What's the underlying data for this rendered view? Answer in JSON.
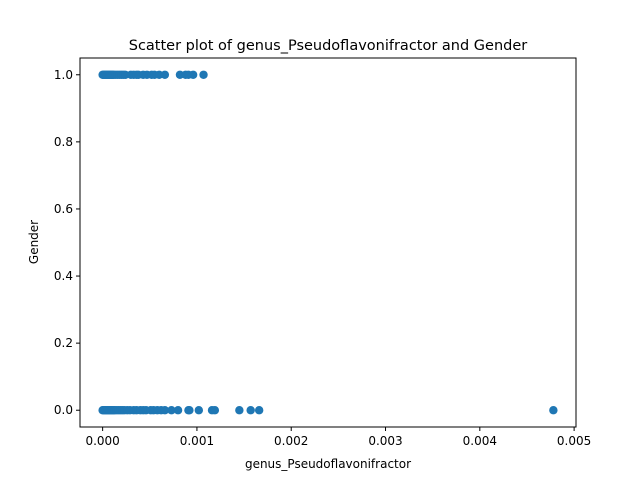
{
  "chart_data": {
    "type": "scatter",
    "title": "Scatter plot of genus_Pseudoflavonifractor and Gender",
    "xlabel": "genus_Pseudoflavonifractor",
    "ylabel": "Gender",
    "xlim": [
      -0.00024,
      0.00502
    ],
    "ylim": [
      -0.05,
      1.05
    ],
    "x_ticks": [
      "0.000",
      "0.001",
      "0.002",
      "0.003",
      "0.004",
      "0.005"
    ],
    "x_tick_values": [
      0.0,
      0.001,
      0.002,
      0.003,
      0.004,
      0.005
    ],
    "y_ticks": [
      "0.0",
      "0.2",
      "0.4",
      "0.6",
      "0.8",
      "1.0"
    ],
    "y_tick_values": [
      0.0,
      0.2,
      0.4,
      0.6,
      0.8,
      1.0
    ],
    "grid": false,
    "marker_color": "#1f77b4",
    "points": [
      {
        "x": 0.0,
        "y": 1
      },
      {
        "x": 1e-05,
        "y": 1
      },
      {
        "x": 2e-05,
        "y": 1
      },
      {
        "x": 3e-05,
        "y": 1
      },
      {
        "x": 4e-05,
        "y": 1
      },
      {
        "x": 5e-05,
        "y": 1
      },
      {
        "x": 6e-05,
        "y": 1
      },
      {
        "x": 7e-05,
        "y": 1
      },
      {
        "x": 8e-05,
        "y": 1
      },
      {
        "x": 9e-05,
        "y": 1
      },
      {
        "x": 0.0001,
        "y": 1
      },
      {
        "x": 0.00011,
        "y": 1
      },
      {
        "x": 0.00012,
        "y": 1
      },
      {
        "x": 0.00014,
        "y": 1
      },
      {
        "x": 0.00016,
        "y": 1
      },
      {
        "x": 0.00018,
        "y": 1
      },
      {
        "x": 0.0002,
        "y": 1
      },
      {
        "x": 0.00022,
        "y": 1
      },
      {
        "x": 0.00024,
        "y": 1
      },
      {
        "x": 0.0003,
        "y": 1
      },
      {
        "x": 0.00033,
        "y": 1
      },
      {
        "x": 0.00036,
        "y": 1
      },
      {
        "x": 0.00038,
        "y": 1
      },
      {
        "x": 0.00043,
        "y": 1
      },
      {
        "x": 0.00047,
        "y": 1
      },
      {
        "x": 0.00052,
        "y": 1
      },
      {
        "x": 0.00055,
        "y": 1
      },
      {
        "x": 0.0006,
        "y": 1
      },
      {
        "x": 0.00066,
        "y": 1
      },
      {
        "x": 0.00082,
        "y": 1
      },
      {
        "x": 0.00088,
        "y": 1
      },
      {
        "x": 0.00091,
        "y": 1
      },
      {
        "x": 0.00096,
        "y": 1
      },
      {
        "x": 0.00107,
        "y": 1
      },
      {
        "x": 0.0,
        "y": 0
      },
      {
        "x": 1e-05,
        "y": 0
      },
      {
        "x": 2e-05,
        "y": 0
      },
      {
        "x": 3e-05,
        "y": 0
      },
      {
        "x": 4e-05,
        "y": 0
      },
      {
        "x": 5e-05,
        "y": 0
      },
      {
        "x": 6e-05,
        "y": 0
      },
      {
        "x": 7e-05,
        "y": 0
      },
      {
        "x": 8e-05,
        "y": 0
      },
      {
        "x": 9e-05,
        "y": 0
      },
      {
        "x": 0.0001,
        "y": 0
      },
      {
        "x": 0.00011,
        "y": 0
      },
      {
        "x": 0.00012,
        "y": 0
      },
      {
        "x": 0.00013,
        "y": 0
      },
      {
        "x": 0.00015,
        "y": 0
      },
      {
        "x": 0.00017,
        "y": 0
      },
      {
        "x": 0.00019,
        "y": 0
      },
      {
        "x": 0.00021,
        "y": 0
      },
      {
        "x": 0.00023,
        "y": 0
      },
      {
        "x": 0.00026,
        "y": 0
      },
      {
        "x": 0.00029,
        "y": 0
      },
      {
        "x": 0.00033,
        "y": 0
      },
      {
        "x": 0.00036,
        "y": 0
      },
      {
        "x": 0.0004,
        "y": 0
      },
      {
        "x": 0.00043,
        "y": 0
      },
      {
        "x": 0.00046,
        "y": 0
      },
      {
        "x": 0.00051,
        "y": 0
      },
      {
        "x": 0.00054,
        "y": 0
      },
      {
        "x": 0.00058,
        "y": 0
      },
      {
        "x": 0.00062,
        "y": 0
      },
      {
        "x": 0.00066,
        "y": 0
      },
      {
        "x": 0.00073,
        "y": 0
      },
      {
        "x": 0.0008,
        "y": 0
      },
      {
        "x": 0.00091,
        "y": 0
      },
      {
        "x": 0.00092,
        "y": 0
      },
      {
        "x": 0.00102,
        "y": 0
      },
      {
        "x": 0.00116,
        "y": 0
      },
      {
        "x": 0.00119,
        "y": 0
      },
      {
        "x": 0.00145,
        "y": 0
      },
      {
        "x": 0.00157,
        "y": 0
      },
      {
        "x": 0.00166,
        "y": 0
      },
      {
        "x": 0.00478,
        "y": 0
      }
    ]
  }
}
